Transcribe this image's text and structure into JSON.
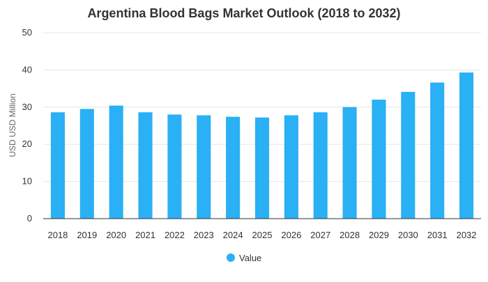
{
  "chart_data": {
    "type": "bar",
    "title": "Argentina Blood Bags Market Outlook (2018 to 2032)",
    "ylabel": "USD USD Million",
    "xlabel": "",
    "categories": [
      "2018",
      "2019",
      "2020",
      "2021",
      "2022",
      "2023",
      "2024",
      "2025",
      "2026",
      "2027",
      "2028",
      "2029",
      "2030",
      "2031",
      "2032"
    ],
    "series": [
      {
        "name": "Value",
        "values": [
          28.6,
          29.5,
          30.4,
          28.6,
          28.0,
          27.8,
          27.4,
          27.2,
          27.8,
          28.6,
          30.0,
          32.0,
          34.1,
          36.6,
          39.3
        ]
      }
    ],
    "ylim": [
      0,
      50
    ],
    "yticks": [
      0,
      10,
      20,
      30,
      40,
      50
    ],
    "grid": true,
    "legend": "bottom-center",
    "bar_color": "#2ab0f5"
  }
}
